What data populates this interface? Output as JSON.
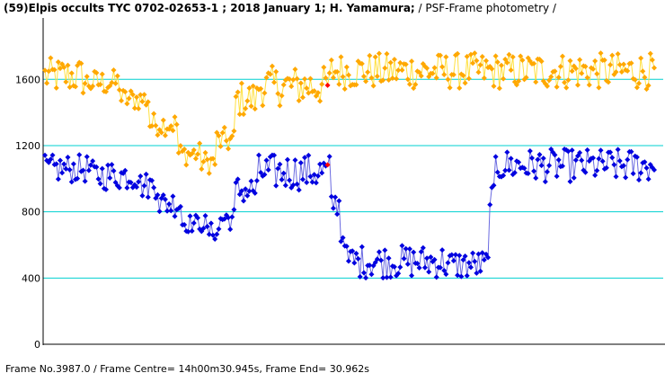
{
  "header": {
    "title_bold": "(59)Elpis occults TYC 0702-02653-1 ; 2018 January 1; H. Yamamura;",
    "title_rest": " / PSF-Frame photometry /"
  },
  "footer": {
    "text": "Frame No.3987.0 / Frame Centre= 14h00m30.945s,  Frame End= 30.962s"
  },
  "colors": {
    "grid": "#00d0d0",
    "occulted_line": "#6a6ae0",
    "occulted_marker": "#0000e0",
    "comparison_line": "#ffe040",
    "comparison_marker": "#ffa800",
    "current_frame_marker": "#ff0000"
  },
  "chart_data": {
    "type": "line",
    "ylim": [
      0,
      1900
    ],
    "yticks": [
      0,
      400,
      800,
      1200,
      1600
    ],
    "grid": "horizontal",
    "n_frames": 320,
    "current_frame_index": 148,
    "series": [
      {
        "key": "occulted",
        "segments": [
          {
            "from": 0,
            "to": 25,
            "base": 1060,
            "amp": 85
          },
          {
            "from": 25,
            "to": 50,
            "base": 1020,
            "amp": 90
          },
          {
            "from": 50,
            "to": 60,
            "base": 960,
            "amp": 80
          },
          {
            "from": 60,
            "to": 72,
            "base": 850,
            "amp": 80
          },
          {
            "from": 72,
            "to": 85,
            "base": 730,
            "amp": 55
          },
          {
            "from": 85,
            "to": 92,
            "base": 680,
            "amp": 55
          },
          {
            "from": 92,
            "to": 100,
            "base": 760,
            "amp": 70
          },
          {
            "from": 100,
            "to": 112,
            "base": 930,
            "amp": 90
          },
          {
            "from": 112,
            "to": 150,
            "base": 1040,
            "amp": 110
          },
          {
            "from": 150,
            "to": 155,
            "base": 850,
            "amp": 80
          },
          {
            "from": 155,
            "to": 158,
            "base": 650,
            "amp": 60
          },
          {
            "from": 158,
            "to": 210,
            "base": 500,
            "amp": 100
          },
          {
            "from": 210,
            "to": 233,
            "base": 480,
            "amp": 90
          },
          {
            "from": 233,
            "to": 236,
            "base": 900,
            "amp": 60
          },
          {
            "from": 236,
            "to": 320,
            "base": 1080,
            "amp": 100
          }
        ]
      },
      {
        "key": "comparison",
        "segments": [
          {
            "from": 0,
            "to": 20,
            "base": 1620,
            "amp": 110
          },
          {
            "from": 20,
            "to": 40,
            "base": 1580,
            "amp": 80
          },
          {
            "from": 40,
            "to": 55,
            "base": 1480,
            "amp": 70
          },
          {
            "from": 55,
            "to": 70,
            "base": 1330,
            "amp": 70
          },
          {
            "from": 70,
            "to": 82,
            "base": 1150,
            "amp": 70
          },
          {
            "from": 82,
            "to": 90,
            "base": 1100,
            "amp": 70
          },
          {
            "from": 90,
            "to": 100,
            "base": 1230,
            "amp": 80
          },
          {
            "from": 100,
            "to": 112,
            "base": 1480,
            "amp": 110
          },
          {
            "from": 112,
            "to": 150,
            "base": 1560,
            "amp": 120
          },
          {
            "from": 150,
            "to": 320,
            "base": 1650,
            "amp": 110
          }
        ]
      }
    ]
  }
}
